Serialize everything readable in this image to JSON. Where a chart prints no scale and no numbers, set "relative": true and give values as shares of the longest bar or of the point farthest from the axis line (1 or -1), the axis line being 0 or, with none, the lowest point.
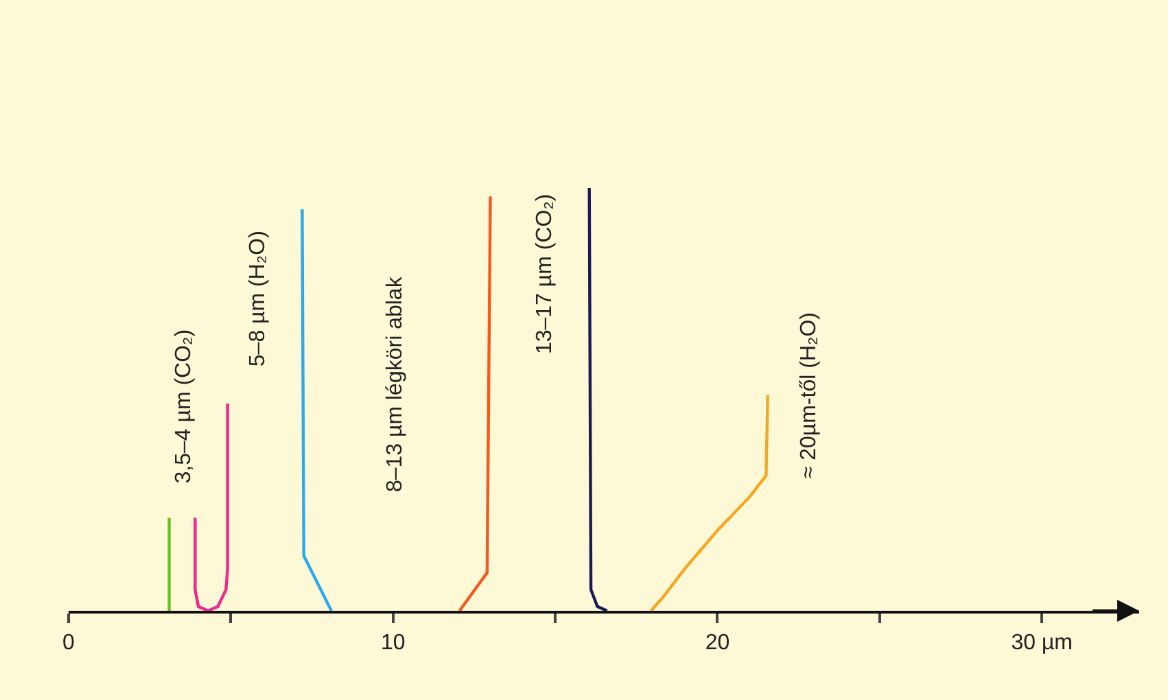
{
  "chart_data": {
    "type": "line",
    "relative": true,
    "xlim": [
      0,
      33
    ],
    "xticks": [
      0,
      {
        "value": 5,
        "label": null
      },
      10,
      {
        "value": 15,
        "label": null
      },
      20,
      {
        "value": 25,
        "label": null
      },
      {
        "value": 30,
        "label": "30 µm"
      }
    ],
    "grid": false,
    "legend": false,
    "marker": "none",
    "line_style": "solid",
    "series": [
      {
        "color": "#6dbf2c",
        "x": [
          3.1,
          3.1
        ],
        "values": [
          0,
          0.22
        ]
      },
      {
        "name": "3,5–4 µm (CO₂)",
        "color": "#f0288c",
        "x": [
          3.9,
          3.9,
          4.0,
          4.3,
          4.6,
          4.85,
          4.9,
          4.9
        ],
        "values": [
          0.22,
          0.05,
          0.01,
          0,
          0.01,
          0.05,
          0.1,
          0.49
        ]
      },
      {
        "name": "5–8 µm (H₂O)",
        "color": "#2aa9f0",
        "x": [
          7.2,
          7.25,
          8.1
        ],
        "values": [
          0.95,
          0.13,
          0
        ]
      },
      {
        "color": "#f25a1e",
        "x": [
          12.05,
          12.9,
          13.0
        ],
        "values": [
          0,
          0.09,
          0.98
        ]
      },
      {
        "name": "13–17 µm (CO₂)",
        "color": "#1a1a5a",
        "x": [
          16.05,
          16.1,
          16.3,
          16.6
        ],
        "values": [
          1,
          0.05,
          0.01,
          0
        ]
      },
      {
        "name": "≈ 20µm-től (H₂O)",
        "color": "#f5a623",
        "x": [
          17.95,
          18.3,
          19,
          20,
          21,
          21.5,
          21.55
        ],
        "values": [
          0,
          0.03,
          0.1,
          0.19,
          0.27,
          0.32,
          0.51
        ]
      }
    ],
    "annotations": [
      "8–13 µm légköri ablak"
    ]
  }
}
